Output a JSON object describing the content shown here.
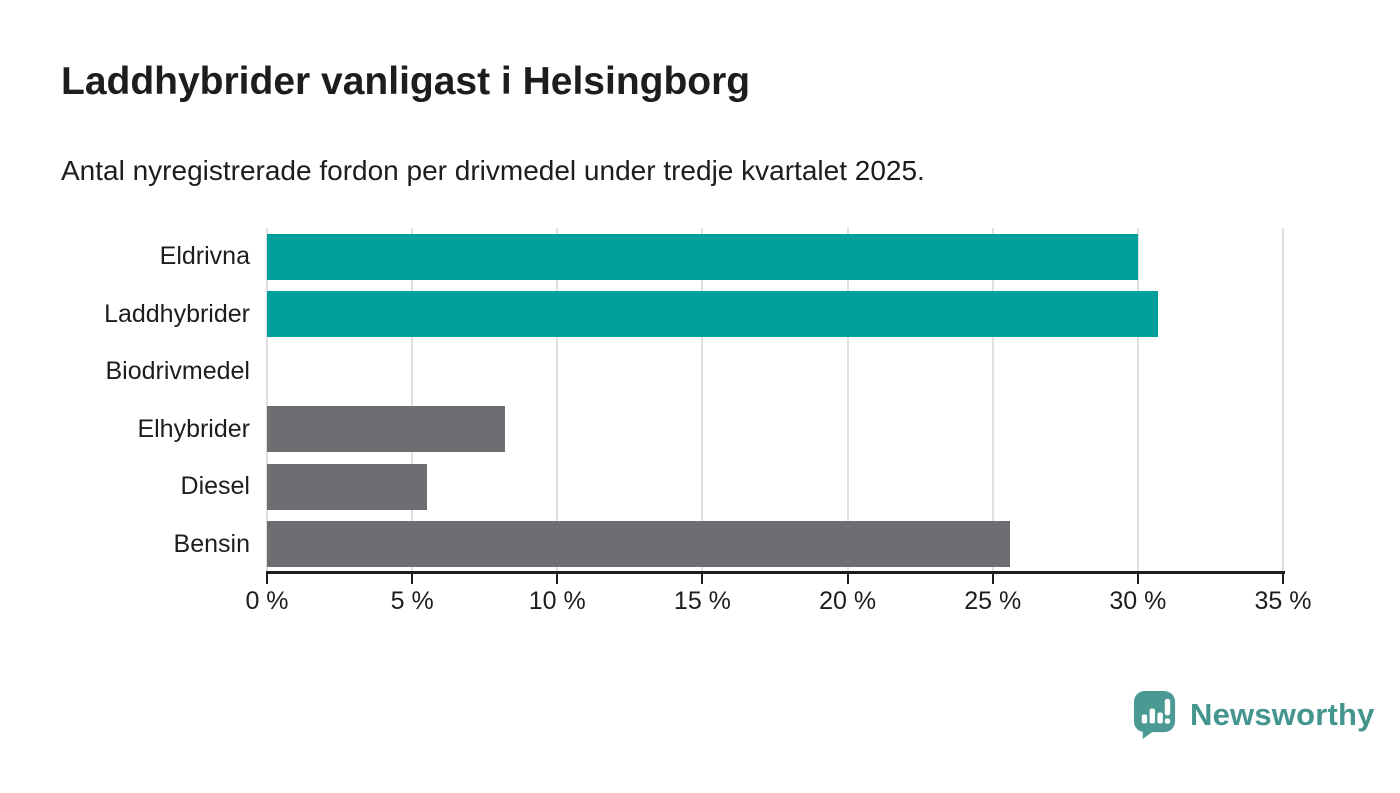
{
  "chart_data": {
    "type": "bar",
    "orientation": "horizontal",
    "title": "Laddhybrider vanligast i Helsingborg",
    "subtitle": "Antal nyregistrerade fordon per drivmedel under tredje kvartalet 2025.",
    "categories": [
      "Eldrivna",
      "Laddhybrider",
      "Biodrivmedel",
      "Elhybrider",
      "Diesel",
      "Bensin"
    ],
    "values": [
      30.0,
      30.7,
      0,
      8.2,
      5.5,
      25.6
    ],
    "unit": "%",
    "bar_colors": [
      "#00a19a",
      "#00a19a",
      "#6d6d72",
      "#6d6d72",
      "#6d6d72",
      "#6d6d72"
    ],
    "xlim": [
      0,
      35
    ],
    "x_ticks": [
      0,
      5,
      10,
      15,
      20,
      25,
      30,
      35
    ],
    "x_tick_labels": [
      "0 %",
      "5 %",
      "10 %",
      "15 %",
      "20 %",
      "25 %",
      "30 %",
      "35 %"
    ],
    "grid": true,
    "legend": "none",
    "xlabel": "",
    "ylabel": ""
  },
  "colors": {
    "highlight": "#00a19a",
    "muted": "#6d6d72",
    "axis": "#1d1d1b",
    "gridline": "#e0e0e0",
    "text": "#1d1d1b",
    "brand": "#44958e"
  },
  "footer": {
    "brand": "Newsworthy",
    "logo_icon": "newsworthy-bar-chart-bubble-icon"
  }
}
